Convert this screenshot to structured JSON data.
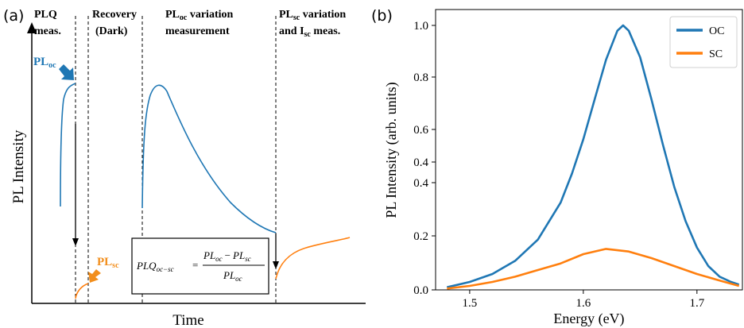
{
  "panel_a": {
    "label": "(a)",
    "phases": [
      {
        "line1": "PLQ",
        "line2": "meas."
      },
      {
        "line1": "Recovery",
        "line2": "(Dark)"
      },
      {
        "line1_base": "PL",
        "line1_sub": "oc",
        "line1_rest": " variation",
        "line2": "measurement"
      },
      {
        "line1_base": "PL",
        "line1_sub": "sc",
        "line1_rest": " variation",
        "line2_base": "and I",
        "line2_sub": "sc",
        "line2_rest": " meas."
      }
    ],
    "plo_label": {
      "base": "PL",
      "sub": "oc"
    },
    "pls_label": {
      "base": "PL",
      "sub": "sc"
    },
    "xlabel": "Time",
    "ylabel": "PL Intensity",
    "formula": {
      "lhs_base": "PLQ",
      "lhs_sub": "oc−sc",
      "equals": "=",
      "num_a_base": "PL",
      "num_a_sub": "oc",
      "minus": "−",
      "num_b_base": "PL",
      "num_b_sub": "sc",
      "den_base": "PL",
      "den_sub": "oc"
    },
    "colors": {
      "oc": "#1f77b4",
      "sc": "#ff7f0e",
      "arrow_oc": "#1f77b4",
      "arrow_sc": "#f28e1c"
    }
  },
  "chart_data": {
    "type": "line",
    "panel_label": "(b)",
    "xlabel": "Energy (eV)",
    "ylabel": "PL Intensity (arb. units)",
    "xlim": [
      1.47,
      1.74
    ],
    "ylim": [
      0.0,
      1.02
    ],
    "xticks": [
      "1.5",
      "1.6",
      "1.7"
    ],
    "yticks": [
      "0.0",
      "0.2",
      "0.4",
      "0.4",
      "0.6",
      "0.8",
      "1.0"
    ],
    "ytick_values": [
      0.0,
      0.2,
      0.4,
      0.4,
      0.6,
      0.8,
      1.0
    ],
    "xtick_values": [
      1.5,
      1.6,
      1.7
    ],
    "legend_position": "top-right",
    "series": [
      {
        "name": "OC",
        "color": "#1f77b4",
        "x": [
          1.48,
          1.5,
          1.52,
          1.54,
          1.56,
          1.58,
          1.59,
          1.6,
          1.61,
          1.62,
          1.63,
          1.635,
          1.64,
          1.65,
          1.66,
          1.67,
          1.68,
          1.69,
          1.7,
          1.71,
          1.72,
          1.73,
          1.737
        ],
        "y": [
          0.01,
          0.03,
          0.06,
          0.11,
          0.19,
          0.33,
          0.44,
          0.57,
          0.72,
          0.87,
          0.98,
          1.0,
          0.98,
          0.88,
          0.72,
          0.55,
          0.39,
          0.26,
          0.16,
          0.09,
          0.05,
          0.03,
          0.02
        ]
      },
      {
        "name": "SC",
        "color": "#ff7f0e",
        "x": [
          1.48,
          1.5,
          1.52,
          1.54,
          1.56,
          1.58,
          1.6,
          1.62,
          1.64,
          1.66,
          1.68,
          1.7,
          1.72,
          1.737
        ],
        "y": [
          0.005,
          0.015,
          0.03,
          0.05,
          0.075,
          0.1,
          0.135,
          0.155,
          0.145,
          0.12,
          0.09,
          0.06,
          0.035,
          0.015
        ]
      }
    ]
  }
}
